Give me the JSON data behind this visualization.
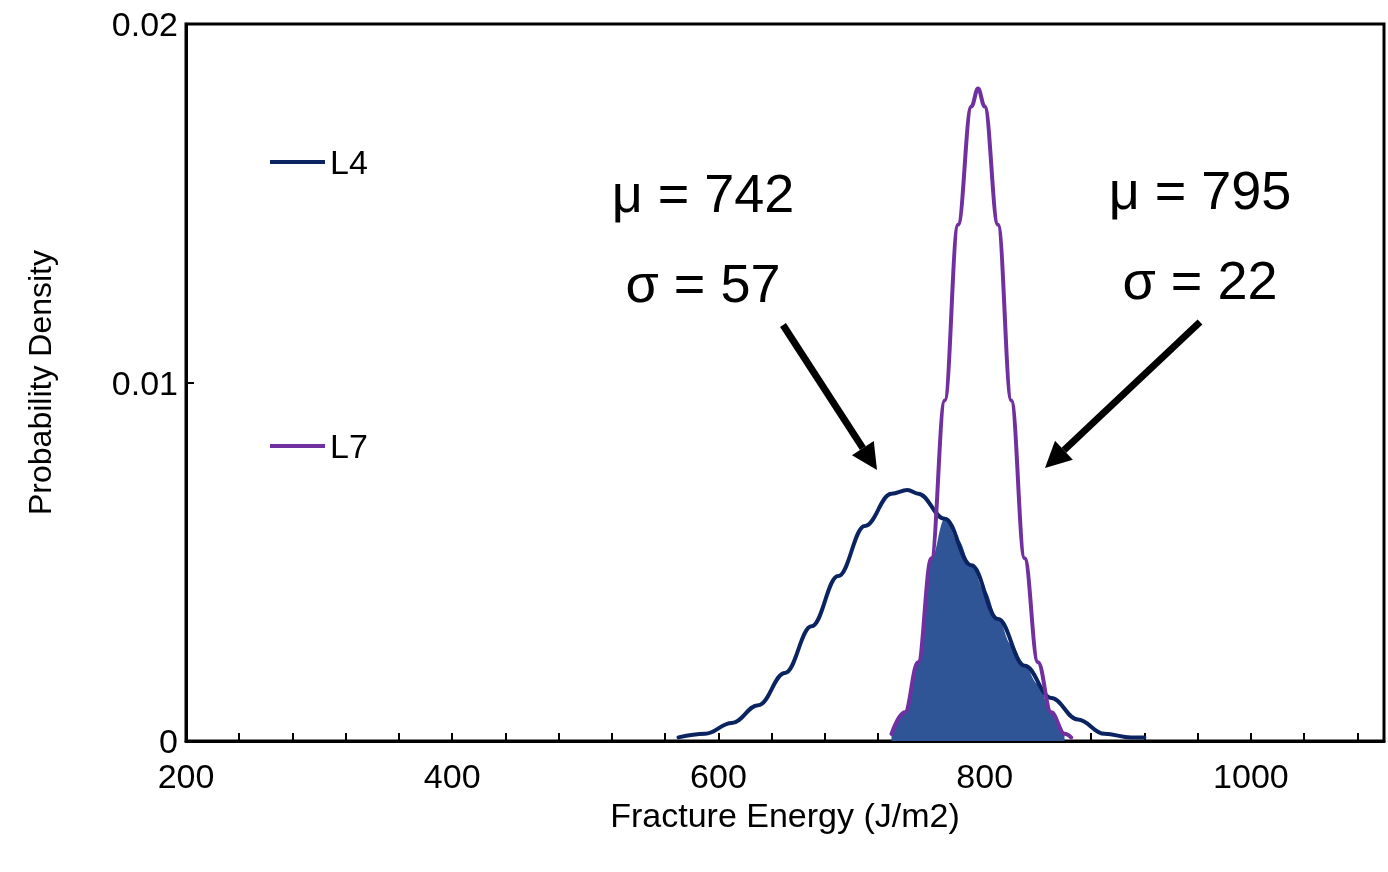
{
  "chart_data": {
    "type": "line",
    "xlabel": "Fracture Energy (J/m2)",
    "ylabel": "Probability Density",
    "xlim": [
      200,
      1100
    ],
    "ylim": [
      0,
      0.02
    ],
    "xticks": [
      200,
      {
        "value": 240,
        "label": null
      },
      {
        "value": 280,
        "label": null
      },
      {
        "value": 320,
        "label": null
      },
      {
        "value": 360,
        "label": null
      },
      400,
      {
        "value": 440,
        "label": null
      },
      {
        "value": 480,
        "label": null
      },
      {
        "value": 520,
        "label": null
      },
      {
        "value": 560,
        "label": null
      },
      600,
      {
        "value": 640,
        "label": null
      },
      {
        "value": 680,
        "label": null
      },
      {
        "value": 720,
        "label": null
      },
      {
        "value": 760,
        "label": null
      },
      800,
      {
        "value": 840,
        "label": null
      },
      {
        "value": 880,
        "label": null
      },
      {
        "value": 920,
        "label": null
      },
      {
        "value": 960,
        "label": null
      },
      1000,
      {
        "value": 1040,
        "label": null
      },
      {
        "value": 1080,
        "label": null
      }
    ],
    "yticks": [
      0,
      0.01,
      0.02
    ],
    "grid": false,
    "legend": "top left",
    "marker": "none",
    "line_style": "solid",
    "series": [
      {
        "name": "L4",
        "color": "#0b2461",
        "x": [
          570,
          590,
          610,
          630,
          650,
          670,
          690,
          710,
          730,
          742,
          750,
          770,
          790,
          810,
          830,
          850,
          870,
          890,
          910,
          920
        ],
        "values": [
          0.0001,
          0.0002,
          0.0005,
          0.001,
          0.0019,
          0.0032,
          0.0046,
          0.006,
          0.0069,
          0.007,
          0.0069,
          0.0062,
          0.0049,
          0.0034,
          0.0021,
          0.0012,
          0.0006,
          0.0002,
          0.0001,
          0.0001
        ]
      },
      {
        "name": "L7",
        "color": "#7030a0",
        "x": [
          730,
          740,
          750,
          760,
          770,
          780,
          790,
          795,
          800,
          810,
          820,
          830,
          840,
          850,
          860,
          865
        ],
        "values": [
          0.0002,
          0.0008,
          0.0022,
          0.0051,
          0.0095,
          0.0144,
          0.0177,
          0.0182,
          0.0177,
          0.0144,
          0.0095,
          0.0051,
          0.0022,
          0.0008,
          0.0002,
          0.0001
        ]
      },
      {
        "type": "area",
        "color": "#2f5597",
        "x": [
          730,
          740,
          750,
          760,
          770,
          780,
          790,
          800,
          810,
          820,
          830,
          840,
          850,
          860
        ],
        "values": [
          0.0002,
          0.0008,
          0.0022,
          0.0051,
          0.0062,
          0.0056,
          0.0049,
          0.0042,
          0.0034,
          0.0027,
          0.0021,
          0.0016,
          0.0008,
          0.0002
        ]
      }
    ],
    "annotations": [
      "μ = 742\nσ = 57",
      "μ = 795\nσ = 22"
    ]
  }
}
